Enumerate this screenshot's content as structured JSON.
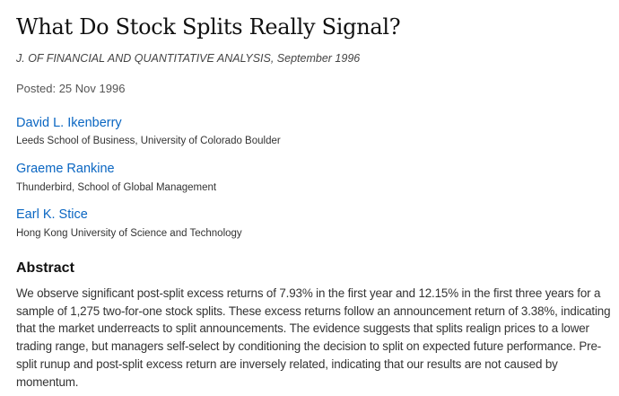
{
  "paper": {
    "title": "What Do Stock Splits Really Signal?",
    "journal": "J. OF FINANCIAL AND QUANTITATIVE ANALYSIS, September 1996",
    "posted": "Posted: 25 Nov 1996",
    "authors": [
      {
        "name": "David L. Ikenberry",
        "affiliation": "Leeds School of Business, University of Colorado Boulder"
      },
      {
        "name": "Graeme Rankine",
        "affiliation": "Thunderbird, School of Global Management"
      },
      {
        "name": "Earl K. Stice",
        "affiliation": "Hong Kong University of Science and Technology"
      }
    ],
    "abstract_heading": "Abstract",
    "abstract": "We observe significant post-split excess returns of 7.93% in the first year and 12.15% in the first three years for a sample of 1,275 two-for-one stock splits. These excess returns follow an announcement return of 3.38%, indicating that the market underreacts to split announcements. The evidence suggests that splits realign prices to a lower trading range, but managers self-select by conditioning the decision to split on expected future performance. Pre-split runup and post-split excess return are inversely related, indicating that our results are not caused by momentum."
  },
  "colors": {
    "author_link": "#0a66c2"
  }
}
